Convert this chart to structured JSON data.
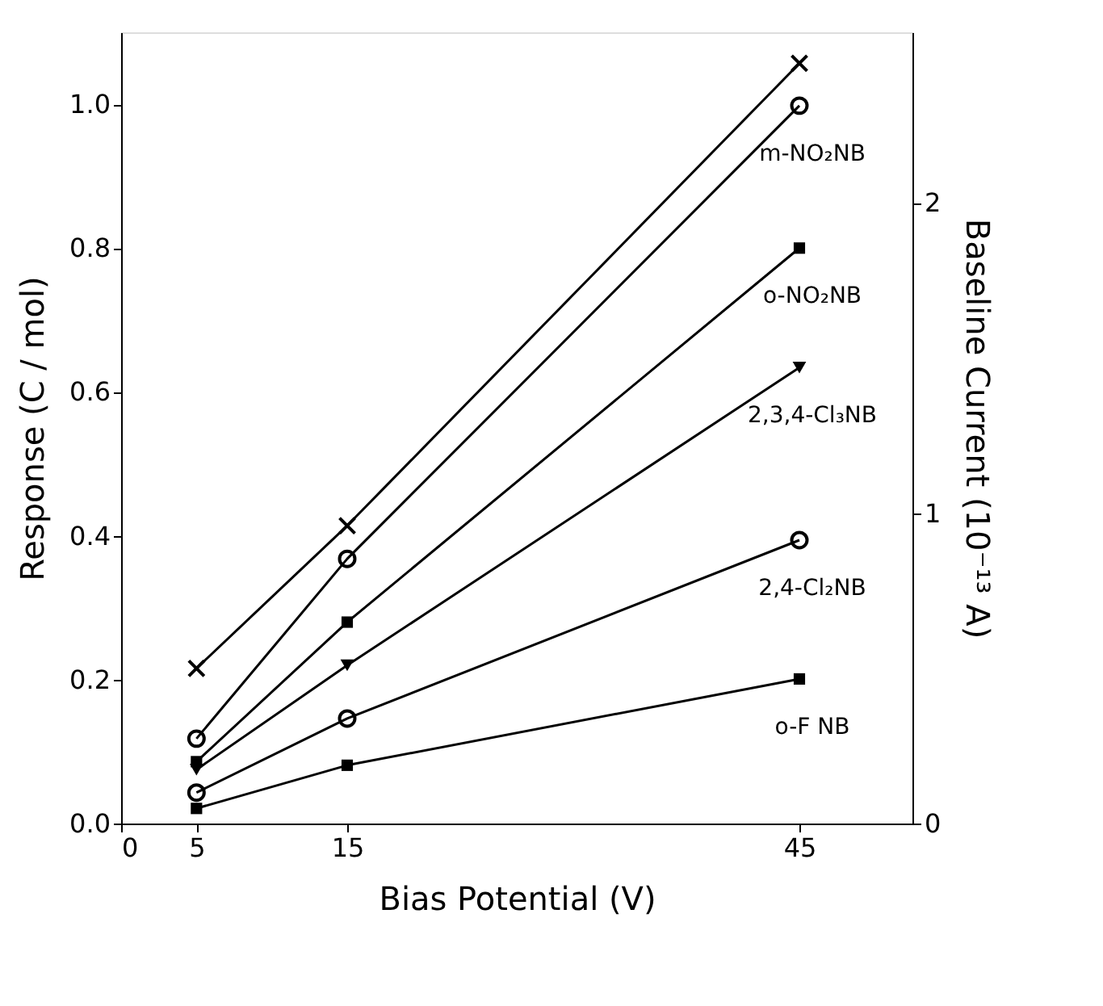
{
  "chart_data": {
    "type": "line",
    "xlabel": "Bias Potential (V)",
    "ylabel": "Response (C / mol)",
    "y2label": "Baseline Current (10⁻¹³ A)",
    "x": [
      5,
      15,
      45
    ],
    "xlim": [
      0,
      52.5
    ],
    "xticks": [
      0,
      5,
      15,
      45
    ],
    "ylim": [
      0,
      1.1
    ],
    "yticks": [
      {
        "value": 0,
        "label": "0.0"
      },
      0.2,
      0.4,
      0.6,
      0.8,
      {
        "value": 1,
        "label": "1.0"
      }
    ],
    "y2lim": [
      0,
      2.55
    ],
    "y2ticks": [
      0,
      1,
      2
    ],
    "grid": false,
    "line_style": "solid",
    "series": [
      {
        "color": "#000000",
        "values": [
          0.5,
          0.96,
          2.45
        ],
        "axis": "y2",
        "marker": "cross"
      },
      {
        "name": "m-NO₂NB",
        "color": "#000000",
        "values": [
          0.118,
          0.368,
          0.998
        ],
        "marker": "circle"
      },
      {
        "name": "o-NO₂NB",
        "color": "#000000",
        "values": [
          0.086,
          0.28,
          0.8
        ],
        "marker": "square"
      },
      {
        "name": "2,3,4-Cl₃NB",
        "color": "#000000",
        "values": [
          0.075,
          0.22,
          0.634
        ],
        "marker": "triangle"
      },
      {
        "name": "2,4-Cl₂NB",
        "color": "#000000",
        "values": [
          0.043,
          0.146,
          0.394
        ],
        "marker": "circle"
      },
      {
        "name": "o-F NB",
        "color": "#000000",
        "values": [
          0.021,
          0.081,
          0.201
        ],
        "marker": "square"
      }
    ]
  }
}
